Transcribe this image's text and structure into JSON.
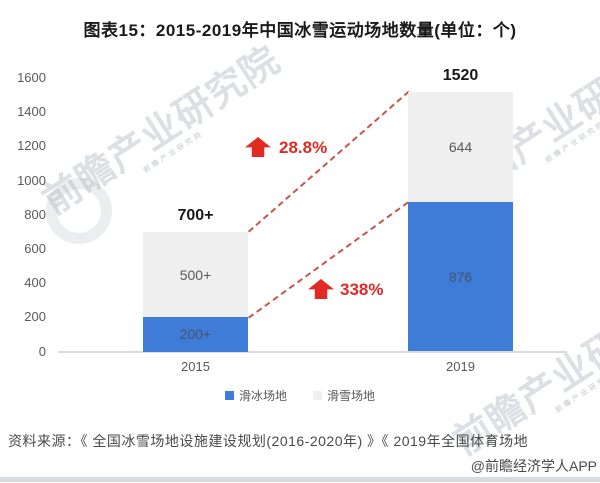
{
  "page": {
    "title": "图表15：2015-2019年中国冰雪运动场地数量(单位：个)",
    "source_line": "资料来源：《 全国冰雪场地设施建设规划(2016-2020年) 》《 2019年全国体育场地",
    "credit_line": "@前瞻经济学人APP",
    "watermark_text": "前瞻产业研究院"
  },
  "chart_data": {
    "type": "bar",
    "stacked": true,
    "title": "图表15：2015-2019年中国冰雪运动场地数量(单位：个)",
    "categories": [
      "2015",
      "2019"
    ],
    "series": [
      {
        "name": "滑冰场地",
        "color": "#3E7CD7",
        "values": [
          200,
          876
        ],
        "labels": [
          "200+",
          "876"
        ]
      },
      {
        "name": "滑雪场地",
        "color": "#EFEFEF",
        "values": [
          500,
          644
        ],
        "labels": [
          "500+",
          "644"
        ]
      }
    ],
    "totals": [
      {
        "value": 700,
        "label": "700+"
      },
      {
        "value": 1520,
        "label": "1520"
      }
    ],
    "yticks": [
      0,
      200,
      400,
      600,
      800,
      1000,
      1200,
      1400,
      1600
    ],
    "ylim": [
      0,
      1600
    ],
    "grid": false,
    "legend_position": "bottom",
    "annotations": [
      {
        "label": "28.8%",
        "series": "滑雪场地",
        "from_value": 500,
        "to_value": 644
      },
      {
        "label": "338%",
        "series": "滑冰场地",
        "from_value": 200,
        "to_value": 876
      }
    ],
    "accent_red": "#E22A24",
    "dashed_line_color": "#C9544C",
    "label_color_on_blue": "#44546A",
    "label_color_default": "#595959"
  }
}
